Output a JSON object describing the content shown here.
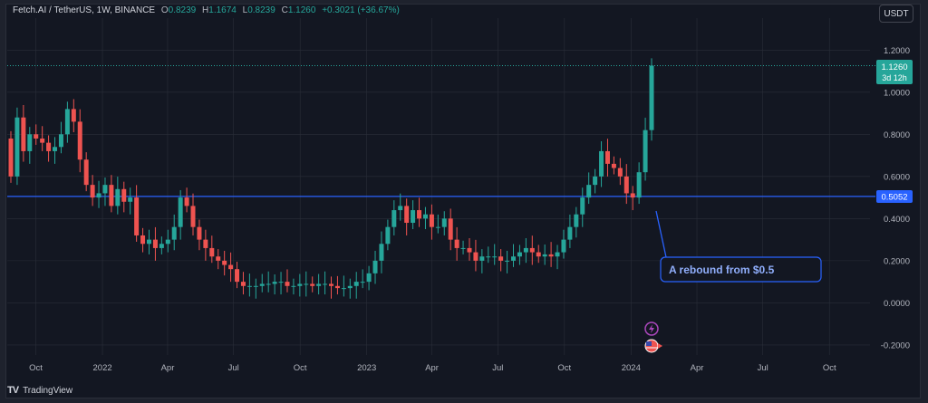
{
  "header": {
    "symbol": "Fetch.AI / TetherUS, 1W, BINANCE",
    "o_label": "O",
    "o_value": "0.8239",
    "h_label": "H",
    "h_value": "1.1674",
    "l_label": "L",
    "l_value": "0.8239",
    "c_label": "C",
    "c_value": "1.1260",
    "change": "+0.3021 (+36.67%)"
  },
  "currency_button": "USDT",
  "brand": {
    "name": "TradingView",
    "logo": "TV"
  },
  "price_badge": {
    "value": "1.1260",
    "countdown": "3d 12h"
  },
  "level_badge": "0.5052",
  "annotation": "A rebound from $0.5",
  "icons": {
    "flash": "flash-icon",
    "flag": "us-flag-icon"
  },
  "colors": {
    "up": "#26a69a",
    "down": "#ef5350",
    "level": "#2962ff",
    "background": "#131722",
    "grid": "#2a2e39",
    "text": "#b2b5be"
  },
  "chart_data": {
    "type": "candlestick",
    "ylim": [
      -0.2,
      1.2
    ],
    "y_ticks": [
      "1.2000",
      "1.0000",
      "0.8000",
      "0.6000",
      "0.4000",
      "0.2000",
      "0.0000",
      "-0.2000"
    ],
    "x_ticks": [
      {
        "label": "Oct",
        "date": "2021-10-01"
      },
      {
        "label": "2022",
        "date": "2022-01-01"
      },
      {
        "label": "Apr",
        "date": "2022-04-01"
      },
      {
        "label": "Jul",
        "date": "2022-07-01"
      },
      {
        "label": "Oct",
        "date": "2022-10-01"
      },
      {
        "label": "2023",
        "date": "2023-01-01"
      },
      {
        "label": "Apr",
        "date": "2023-04-01"
      },
      {
        "label": "Jul",
        "date": "2023-07-01"
      },
      {
        "label": "Oct",
        "date": "2023-10-01"
      },
      {
        "label": "2024",
        "date": "2024-01-01"
      },
      {
        "label": "Apr",
        "date": "2024-04-01"
      },
      {
        "label": "Jul",
        "date": "2024-07-01"
      },
      {
        "label": "Oct",
        "date": "2024-10-01"
      }
    ],
    "horizontal_level": 0.5052,
    "last_price": 1.126,
    "series_close": [
      0.6,
      0.88,
      0.72,
      0.8,
      0.78,
      0.76,
      0.72,
      0.74,
      0.8,
      0.92,
      0.86,
      0.68,
      0.56,
      0.5,
      0.52,
      0.56,
      0.46,
      0.54,
      0.48,
      0.5,
      0.32,
      0.28,
      0.3,
      0.26,
      0.28,
      0.3,
      0.36,
      0.5,
      0.46,
      0.36,
      0.3,
      0.26,
      0.22,
      0.2,
      0.18,
      0.16,
      0.1,
      0.08,
      0.08,
      0.08,
      0.09,
      0.09,
      0.1,
      0.1,
      0.08,
      0.08,
      0.09,
      0.09,
      0.08,
      0.09,
      0.09,
      0.08,
      0.07,
      0.07,
      0.08,
      0.1,
      0.1,
      0.14,
      0.2,
      0.28,
      0.36,
      0.44,
      0.46,
      0.38,
      0.44,
      0.4,
      0.42,
      0.36,
      0.36,
      0.4,
      0.3,
      0.26,
      0.26,
      0.24,
      0.2,
      0.22,
      0.22,
      0.22,
      0.2,
      0.2,
      0.22,
      0.24,
      0.26,
      0.24,
      0.22,
      0.23,
      0.22,
      0.24,
      0.3,
      0.36,
      0.42,
      0.5,
      0.56,
      0.6,
      0.72,
      0.66,
      0.64,
      0.6,
      0.52,
      0.5,
      0.62,
      0.82,
      1.126
    ]
  }
}
